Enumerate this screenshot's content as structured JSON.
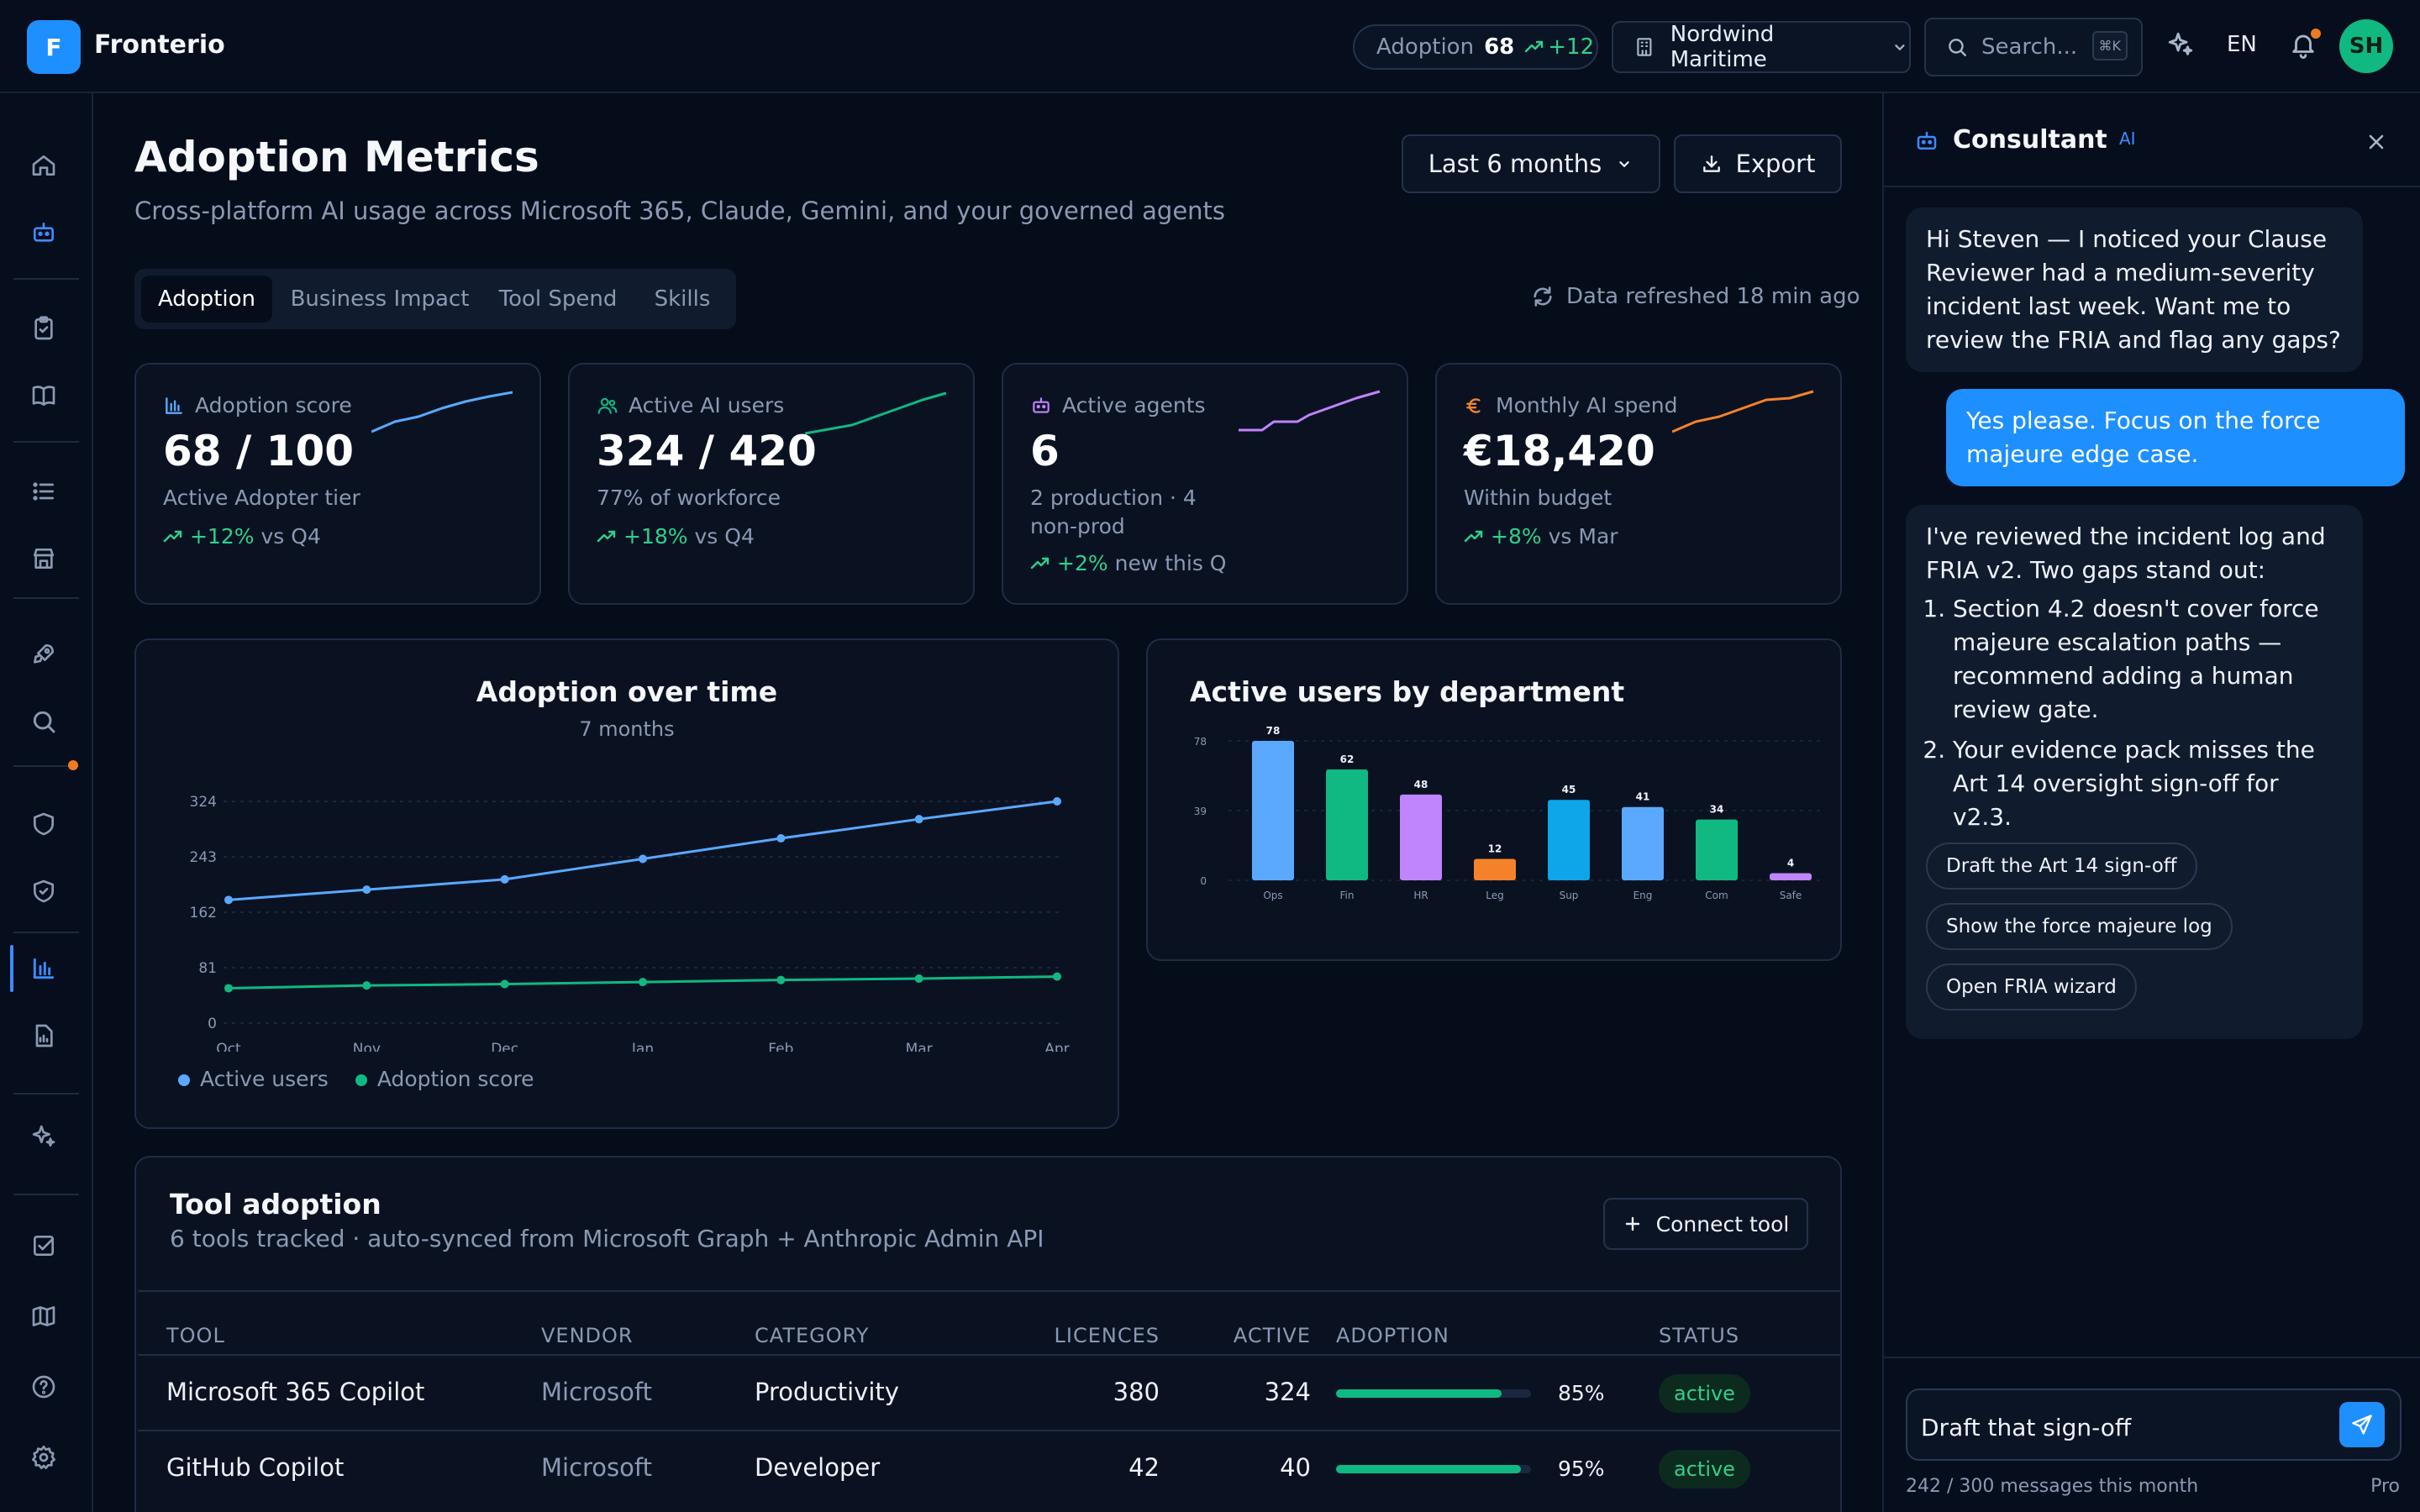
{
  "app": {
    "logo_letter": "F",
    "name": "Fronterio"
  },
  "topbar": {
    "adoption_label": "Adoption",
    "adoption_value": "68",
    "adoption_delta": "+12",
    "org": "Nordwind Maritime",
    "search_placeholder": "Search...",
    "search_shortcut": "⌘K",
    "language": "EN",
    "avatar_initials": "SH"
  },
  "header": {
    "title": "Adoption Metrics",
    "subtitle": "Cross-platform AI usage across Microsoft 365, Claude, Gemini, and your governed agents",
    "range_label": "Last 6 months",
    "export_label": "Export"
  },
  "tabs": [
    "Adoption",
    "Business Impact",
    "Tool Spend",
    "Skills"
  ],
  "refresh_text": "Data refreshed 18 min ago",
  "kpis": [
    {
      "label": "Adoption score",
      "value": "68 / 100",
      "sub": "Active Adopter tier",
      "delta": "+12%",
      "delta_text": "vs Q4",
      "icon": "bar-chart-icon",
      "color": "#5aa9ff"
    },
    {
      "label": "Active AI users",
      "value": "324 / 420",
      "sub": "77% of workforce",
      "delta": "+18%",
      "delta_text": "vs Q4",
      "icon": "users-icon",
      "color": "#10b981"
    },
    {
      "label": "Active agents",
      "value": "6",
      "sub": "2 production · 4 non-prod",
      "delta": "+2%",
      "delta_text": "new this Q",
      "icon": "bot-icon",
      "color": "#c084fc"
    },
    {
      "label": "Monthly AI spend",
      "value": "€18,420",
      "sub": "Within budget",
      "delta": "+8%",
      "delta_text": "vs Mar",
      "icon": "euro-icon",
      "color": "#f5822a"
    }
  ],
  "chart_data": [
    {
      "type": "line",
      "title": "Adoption over time",
      "subtitle": "7 months",
      "x": [
        "Oct",
        "Nov",
        "Dec",
        "Jan",
        "Feb",
        "Mar",
        "Apr"
      ],
      "yticks": [
        0,
        81,
        162,
        243,
        324
      ],
      "ylim": [
        0,
        324
      ],
      "series": [
        {
          "name": "Active users",
          "color": "#5aa9ff",
          "values": [
            180,
            195,
            210,
            240,
            270,
            298,
            324
          ]
        },
        {
          "name": "Adoption score",
          "color": "#10b981",
          "values": [
            51,
            55,
            57,
            60,
            63,
            65,
            68
          ]
        }
      ],
      "legend": "bottom-left",
      "grid": true
    },
    {
      "type": "bar",
      "title": "Active users by department",
      "categories": [
        "Ops",
        "Fin",
        "HR",
        "Leg",
        "Sup",
        "Eng",
        "Com",
        "Safe"
      ],
      "values": [
        78,
        62,
        48,
        12,
        45,
        41,
        34,
        4
      ],
      "colors": [
        "#5aa9ff",
        "#10b981",
        "#c084fc",
        "#f5822a",
        "#0ea5e9",
        "#5aa9ff",
        "#10b981",
        "#c084fc"
      ],
      "yticks": [
        0,
        39,
        78
      ],
      "ylim": [
        0,
        78
      ],
      "grid": true
    }
  ],
  "tools": {
    "title": "Tool adoption",
    "subtitle": "6 tools tracked · auto-synced from Microsoft Graph + Anthropic Admin API",
    "connect_label": "Connect tool",
    "columns": [
      "TOOL",
      "VENDOR",
      "CATEGORY",
      "LICENCES",
      "ACTIVE",
      "ADOPTION",
      "STATUS"
    ],
    "rows": [
      {
        "tool": "Microsoft 365 Copilot",
        "vendor": "Microsoft",
        "category": "Productivity",
        "licences": "380",
        "active": "324",
        "adoption": "85%",
        "adoption_value": 0.85,
        "status": "active"
      },
      {
        "tool": "GitHub Copilot",
        "vendor": "Microsoft",
        "category": "Developer",
        "licences": "42",
        "active": "40",
        "adoption": "95%",
        "adoption_value": 0.95,
        "status": "active"
      }
    ]
  },
  "consultant": {
    "title": "Consultant",
    "ai_tag": "AI",
    "msg1": "Hi Steven — I noticed your Clause Reviewer had a medium-severity incident last week. Want me to review the FRIA and flag any gaps?",
    "msg2": "Yes please. Focus on the force majeure edge case.",
    "msg3_intro": "I've reviewed the incident log and FRIA v2. Two gaps stand out:",
    "msg3_items": [
      "Section 4.2 doesn't cover force majeure escalation paths — recommend adding a human review gate.",
      "Your evidence pack misses the Art 14 oversight sign-off for v2.3."
    ],
    "chips": [
      "Draft the Art 14 sign-off",
      "Show the force majeure log",
      "Open FRIA wizard"
    ],
    "input_value": "Draft that sign-off",
    "quota": "242 / 300 messages this month",
    "plan": "Pro"
  }
}
